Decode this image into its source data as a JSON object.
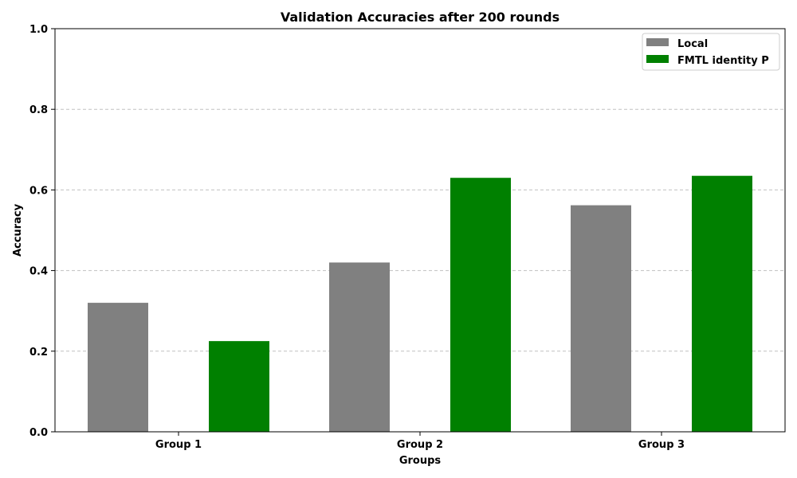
{
  "chart_data": {
    "type": "bar",
    "title": "Validation Accuracies after 200 rounds",
    "xlabel": "Groups",
    "ylabel": "Accuracy",
    "categories": [
      "Group 1",
      "Group 2",
      "Group 3"
    ],
    "series": [
      {
        "name": "Local",
        "color": "#808080",
        "values": [
          0.32,
          0.42,
          0.562
        ]
      },
      {
        "name": "FMTL identity P",
        "color": "#008000",
        "values": [
          0.225,
          0.63,
          0.635
        ]
      }
    ],
    "ylim": [
      0,
      1.0
    ],
    "yticks": [
      0.0,
      0.2,
      0.4,
      0.6,
      0.8,
      1.0
    ],
    "ytick_labels": [
      "0.0",
      "0.2",
      "0.4",
      "0.6",
      "0.8",
      "1.0"
    ],
    "grid": "y-dashed",
    "legend_position": "top-right"
  }
}
